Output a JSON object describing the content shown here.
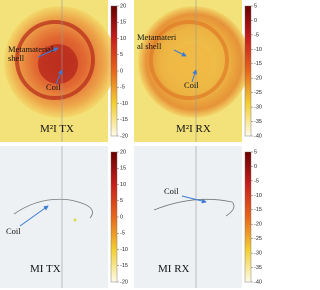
{
  "panels": [
    {
      "label": "M²I TX",
      "annotations": [
        {
          "lines": [
            "Metamaterial",
            "shell"
          ]
        },
        {
          "lines": [
            "Coil"
          ]
        }
      ],
      "colorbar_ticks": [
        20,
        15,
        10,
        5,
        0,
        -5,
        -10,
        -15,
        -20
      ]
    },
    {
      "label": "M²I RX",
      "annotations": [
        {
          "lines": [
            "Metamateri",
            "al shell"
          ]
        },
        {
          "lines": [
            "Coil"
          ]
        }
      ],
      "colorbar_ticks": [
        5,
        0,
        -5,
        -10,
        -15,
        -20,
        -25,
        -30,
        -35,
        -40
      ]
    },
    {
      "label": "MI TX",
      "annotations": [
        {
          "lines": [
            "Coil"
          ]
        }
      ],
      "colorbar_ticks": [
        20,
        15,
        10,
        5,
        0,
        -5,
        -10,
        -15,
        -20
      ]
    },
    {
      "label": "MI RX",
      "annotations": [
        {
          "lines": [
            "Coil"
          ]
        }
      ],
      "colorbar_ticks": [
        5,
        0,
        -5,
        -10,
        -15,
        -20,
        -25,
        -30,
        -35,
        -40
      ]
    }
  ]
}
